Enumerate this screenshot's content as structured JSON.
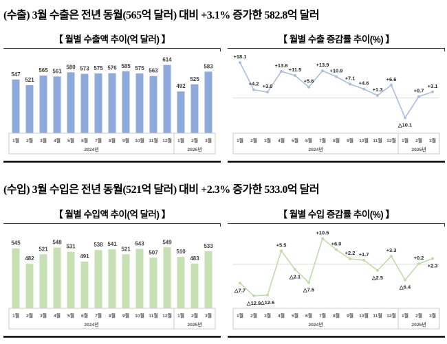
{
  "headlines": {
    "export": "(수출) 3월 수출은 전년 동월(565억 달러) 대비 +3.1% 증가한 582.8억 달러",
    "import": "(수입) 3월 수입은 전년 동월(521억 달러) 대비 +2.3% 증가한 533.0억 달러"
  },
  "colors": {
    "export_bar": "#8EA9DB",
    "export_line": "#A8BEDF",
    "import_bar": "#C6E0B4",
    "import_line": "#BFDCA8",
    "value_label": "#404040",
    "axis_text": "#595959",
    "axis_box": "#C9C9C9",
    "zero_line": "#D9D9D9"
  },
  "chart_data": [
    {
      "id": "export-amount",
      "type": "bar",
      "title": "【 월별 수출액 추이(억 달러) 】",
      "categories": [
        "1월",
        "2월",
        "3월",
        "4월",
        "5월",
        "6월",
        "7월",
        "8월",
        "9월",
        "10월",
        "11월",
        "12월",
        "1월",
        "2월",
        "3월"
      ],
      "year_groups": [
        {
          "label": "2024년",
          "span": 12
        },
        {
          "label": "2025년",
          "span": 3
        }
      ],
      "values": [
        547,
        521,
        565,
        561,
        580,
        573,
        575,
        576,
        585,
        575,
        563,
        614,
        492,
        525,
        583
      ],
      "value_labels": [
        "547",
        "521",
        "565",
        "561",
        "580",
        "573",
        "575",
        "576",
        "585",
        "575",
        "563",
        "614",
        "492",
        "525",
        "583"
      ],
      "bar_color": "#8EA9DB",
      "xlabel": "",
      "ylabel": "억 달러",
      "ylim": [
        300,
        660
      ],
      "grid": false,
      "legend": "none"
    },
    {
      "id": "export-growth",
      "type": "line",
      "title": "【 월별 수출 증감률 추이(%) 】",
      "categories": [
        "1월",
        "2월",
        "3월",
        "4월",
        "5월",
        "6월",
        "7월",
        "8월",
        "9월",
        "10월",
        "11월",
        "12월",
        "1월",
        "2월",
        "3월"
      ],
      "year_groups": [
        {
          "label": "2024년",
          "span": 12
        },
        {
          "label": "2025년",
          "span": 3
        }
      ],
      "values": [
        18.1,
        4.2,
        3.0,
        13.6,
        11.5,
        5.6,
        13.9,
        10.9,
        7.1,
        4.6,
        1.3,
        6.6,
        -10.1,
        0.7,
        3.1
      ],
      "value_labels": [
        "+18.1",
        "+4.2",
        "+3.0",
        "+13.6",
        "+11.5",
        "+5.6",
        "+13.9",
        "+10.9",
        "+7.1",
        "+4.6",
        "+1.3",
        "+6.6",
        "△10.1",
        "+0.7",
        "+3.1"
      ],
      "label_sides": [
        "above",
        "above",
        "above",
        "above",
        "above",
        "above",
        "above",
        "above",
        "above",
        "above",
        "above",
        "above",
        "below",
        "above",
        "above"
      ],
      "line_color": "#A8BEDF",
      "xlabel": "",
      "ylabel": "%",
      "ylim": [
        -18,
        22
      ],
      "grid": false,
      "legend": "none",
      "zero_line": true
    },
    {
      "id": "import-amount",
      "type": "bar",
      "title": "【 월별 수입액 추이(억 달러) 】",
      "categories": [
        "1월",
        "2월",
        "3월",
        "4월",
        "5월",
        "6월",
        "7월",
        "8월",
        "9월",
        "10월",
        "11월",
        "12월",
        "1월",
        "2월",
        "3월"
      ],
      "year_groups": [
        {
          "label": "2024년",
          "span": 12
        },
        {
          "label": "2025년",
          "span": 3
        }
      ],
      "values": [
        545,
        482,
        521,
        548,
        531,
        491,
        538,
        541,
        521,
        543,
        507,
        549,
        510,
        483,
        533
      ],
      "value_labels": [
        "545",
        "482",
        "521",
        "548",
        "531",
        "491",
        "538",
        "541",
        "521",
        "543",
        "507",
        "549",
        "510",
        "483",
        "533"
      ],
      "bar_color": "#C6E0B4",
      "xlabel": "",
      "ylabel": "억 달러",
      "ylim": [
        300,
        620
      ],
      "grid": false,
      "legend": "none"
    },
    {
      "id": "import-growth",
      "type": "line",
      "title": "【 월별 수입 증감률 추이(%) 】",
      "categories": [
        "1월",
        "2월",
        "3월",
        "4월",
        "5월",
        "6월",
        "7월",
        "8월",
        "9월",
        "10월",
        "11월",
        "12월",
        "1월",
        "2월",
        "3월"
      ],
      "year_groups": [
        {
          "label": "2024년",
          "span": 12
        },
        {
          "label": "2025년",
          "span": 3
        }
      ],
      "values": [
        -7.7,
        -12.9,
        -12.6,
        5.5,
        -2.1,
        -7.5,
        10.5,
        6.0,
        2.2,
        1.7,
        -2.5,
        3.3,
        -6.4,
        0.2,
        2.3
      ],
      "value_labels": [
        "△7.7",
        "△12.9",
        "△12.6",
        "+5.5",
        "△2.1",
        "△7.5",
        "+10.5",
        "+6.0",
        "+2.2",
        "+1.7",
        "△2.5",
        "+3.3",
        "△6.4",
        "+0.2",
        "+2.3"
      ],
      "label_sides": [
        "below",
        "below",
        "below",
        "above",
        "below",
        "below",
        "above",
        "above",
        "above",
        "above",
        "below",
        "above",
        "below",
        "above",
        "below"
      ],
      "line_color": "#BFDCA8",
      "xlabel": "",
      "ylabel": "%",
      "ylim": [
        -18,
        14
      ],
      "grid": false,
      "legend": "none",
      "zero_line": true
    }
  ]
}
